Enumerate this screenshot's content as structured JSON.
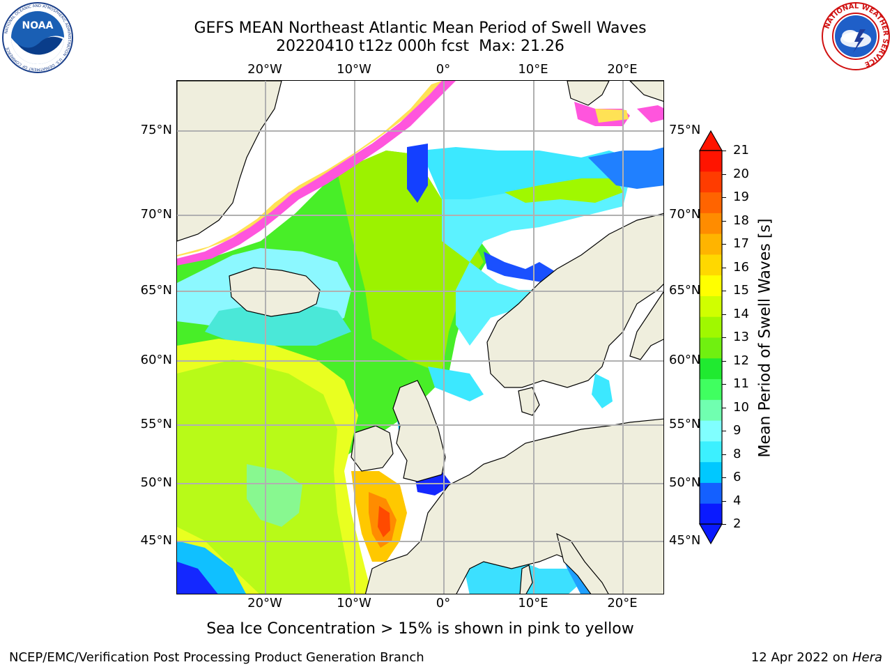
{
  "header": {
    "title_line1": "GEFS MEAN Northeast Atlantic Mean Period of Swell Waves",
    "date_fcst": "20220410 t12z 000h fcst",
    "max_label": "Max: 21.26"
  },
  "logos": {
    "noaa_text": "NOAA",
    "noaa_ring_text": "NATIONAL OCEANIC AND ATMOSPHERIC ADMINISTRATION · U.S. DEPARTMENT OF COMMERCE",
    "nws_ring_text": "NATIONAL WEATHER SERVICE"
  },
  "map": {
    "lon_labels": [
      "20°W",
      "10°W",
      "0°",
      "10°E",
      "20°E"
    ],
    "lat_labels": [
      "75°N",
      "70°N",
      "65°N",
      "60°N",
      "55°N",
      "50°N",
      "45°N"
    ],
    "colors": {
      "land": "#efeedd",
      "grid": "#b0b0b0",
      "ice_pink": "#ff55dd",
      "ice_yellow": "#ffe255"
    }
  },
  "colorbar": {
    "label": "Mean Period of Swell Waves [s]",
    "ticks": [
      "21",
      "20",
      "19",
      "18",
      "17",
      "16",
      "15",
      "14",
      "13",
      "12",
      "11",
      "10",
      "9",
      "8",
      "6",
      "4",
      "2"
    ],
    "colors": [
      "#0a1aff",
      "#1460ff",
      "#00c8ff",
      "#3cf0ff",
      "#80ffff",
      "#70ffb0",
      "#40ff60",
      "#20ea30",
      "#70f010",
      "#a0f800",
      "#d0ff00",
      "#ffff00",
      "#ffd800",
      "#ffb400",
      "#ff8c00",
      "#ff6400",
      "#ff3c00",
      "#ff1400"
    ]
  },
  "footer": {
    "note": "Sea Ice Concentration > 15% is shown in pink to yellow",
    "left": "NCEP/EMC/Verification Post Processing Product Generation Branch",
    "right_date": "12 Apr 2022 on",
    "right_host": "Hera"
  }
}
